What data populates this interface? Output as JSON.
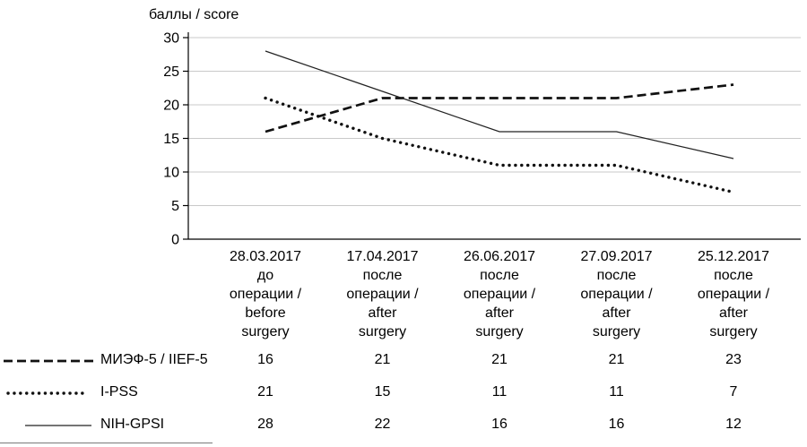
{
  "chart_data": {
    "type": "line",
    "title": "",
    "ylabel": "баллы / score",
    "xlabel": "",
    "ylim": [
      0,
      30
    ],
    "yticks": [
      0,
      5,
      10,
      15,
      20,
      25,
      30
    ],
    "grid": true,
    "legend_position": "bottom-left-table",
    "categories": [
      "28.03.2017",
      "17.04.2017",
      "26.06.2017",
      "27.09.2017",
      "25.12.2017"
    ],
    "category_sublabels": [
      "до\nоперации /\nbefore\nsurgery",
      "после\nоперации /\nafter\nsurgery",
      "после\nоперации /\nafter\nsurgery",
      "после\nоперации /\nafter\nsurgery",
      "после\nоперации /\nafter\nsurgery"
    ],
    "series": [
      {
        "id": "iief5",
        "name": "МИЭФ-5 / IIEF-5",
        "style": "dashed",
        "values": [
          16,
          21,
          21,
          21,
          23
        ]
      },
      {
        "id": "ipss",
        "name": "I-PSS",
        "style": "dotted",
        "values": [
          21,
          15,
          11,
          11,
          7
        ]
      },
      {
        "id": "nih-gpsi",
        "name": "NIH-GPSI",
        "style": "solid",
        "values": [
          28,
          22,
          16,
          16,
          12
        ]
      }
    ],
    "colors": {
      "line": "#111111",
      "grid": "#c9c9c9",
      "axis": "#000000"
    }
  }
}
